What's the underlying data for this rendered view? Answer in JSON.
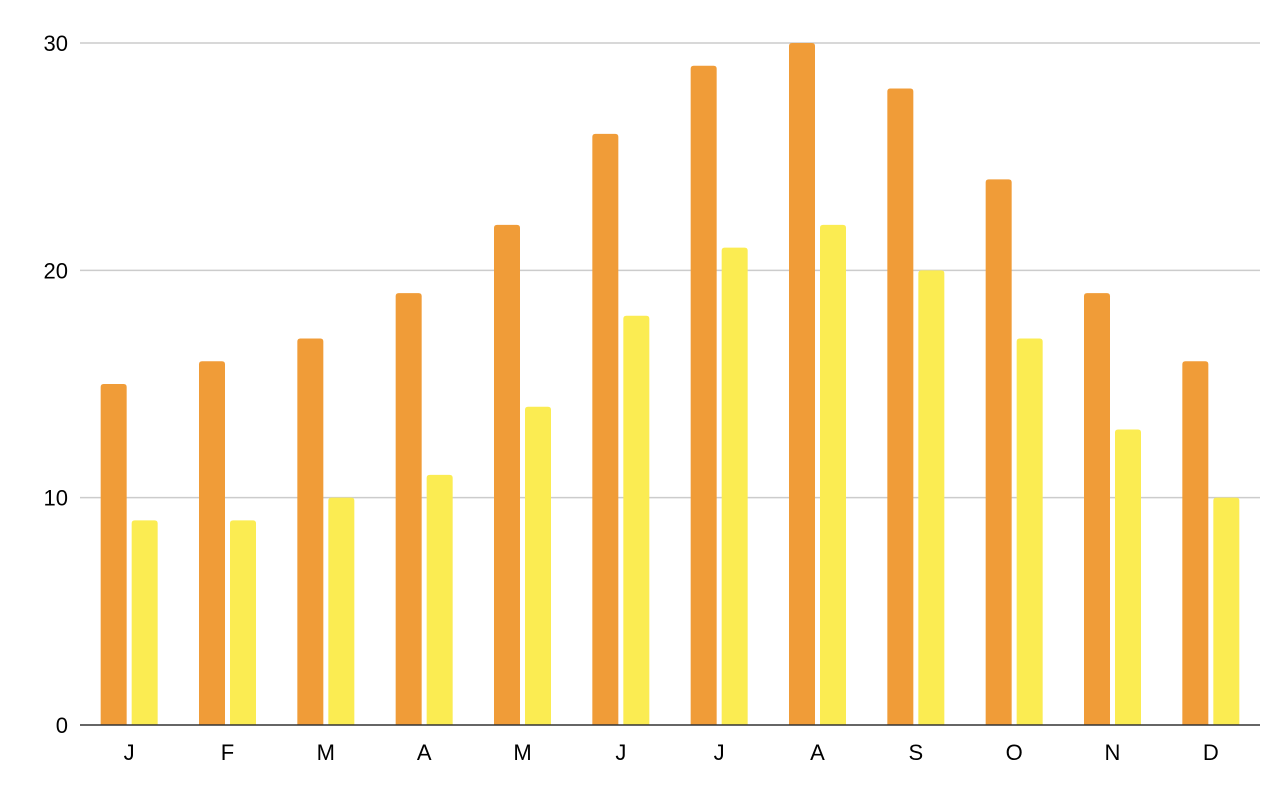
{
  "chart_data": {
    "type": "bar",
    "title": "",
    "xlabel": "",
    "ylabel": "",
    "categories": [
      "J",
      "F",
      "M",
      "A",
      "M",
      "J",
      "J",
      "A",
      "S",
      "O",
      "N",
      "D"
    ],
    "series": [
      {
        "color": "#f09c38",
        "values": [
          15,
          16,
          17,
          19,
          22,
          26,
          29,
          30,
          28,
          24,
          19,
          16
        ]
      },
      {
        "color": "#fbec52",
        "values": [
          9,
          9,
          10,
          11,
          14,
          18,
          21,
          22,
          20,
          17,
          13,
          10
        ]
      }
    ],
    "ylim": [
      0,
      30
    ],
    "yticks": [
      "0",
      "10",
      "20",
      "30"
    ],
    "grid": true,
    "legend": "none"
  }
}
